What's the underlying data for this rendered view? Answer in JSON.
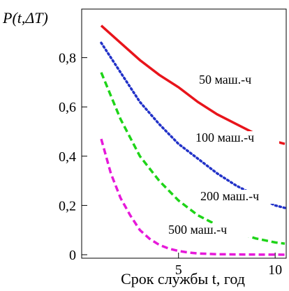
{
  "chart_data": {
    "type": "line",
    "ylabel": "P(t,ΔT)",
    "xlabel": "Срок службы t, год",
    "xlim": [
      0,
      10.5
    ],
    "ylim": [
      0,
      1.0
    ],
    "x_ticks": [
      5,
      10
    ],
    "x_tick_labels": [
      "5",
      "10"
    ],
    "y_ticks": [
      0,
      0.2,
      0.4,
      0.6,
      0.8
    ],
    "y_tick_labels": [
      "0",
      "0,2",
      "0,4",
      "0,6",
      "0,8"
    ],
    "grid": false,
    "legend": "none",
    "series": [
      {
        "name": "50 маш.-ч",
        "color": "#e8141b",
        "dash": "solid",
        "x": [
          1,
          2,
          3,
          4,
          5,
          6,
          7,
          8,
          9,
          10,
          10.5
        ],
        "y": [
          0.93,
          0.86,
          0.79,
          0.73,
          0.68,
          0.62,
          0.57,
          0.53,
          0.49,
          0.46,
          0.45
        ]
      },
      {
        "name": "100 маш.-ч",
        "color": "#2232c8",
        "dash": "dotted",
        "x": [
          1,
          2,
          3,
          4,
          5,
          6,
          7,
          8,
          9,
          10,
          10.5
        ],
        "y": [
          0.86,
          0.74,
          0.62,
          0.53,
          0.45,
          0.39,
          0.33,
          0.28,
          0.24,
          0.2,
          0.19
        ]
      },
      {
        "name": "200 маш.-ч",
        "color": "#1ed418",
        "dash": "dashed",
        "x": [
          1,
          2,
          3,
          4,
          5,
          6,
          7,
          8,
          9,
          10,
          10.5
        ],
        "y": [
          0.74,
          0.55,
          0.4,
          0.3,
          0.22,
          0.16,
          0.12,
          0.09,
          0.066,
          0.05,
          0.045
        ]
      },
      {
        "name": "500 маш.-ч",
        "color": "#e619d9",
        "dash": "dashed",
        "x": [
          1,
          1.5,
          2,
          2.5,
          3,
          3.5,
          4,
          4.5,
          5,
          5.5,
          6,
          7,
          8,
          9,
          10,
          10.5
        ],
        "y": [
          0.47,
          0.33,
          0.23,
          0.16,
          0.1,
          0.065,
          0.04,
          0.025,
          0.015,
          0.009,
          0.005,
          0.002,
          0.001,
          0.0005,
          0.0002,
          0.0001
        ]
      }
    ]
  }
}
